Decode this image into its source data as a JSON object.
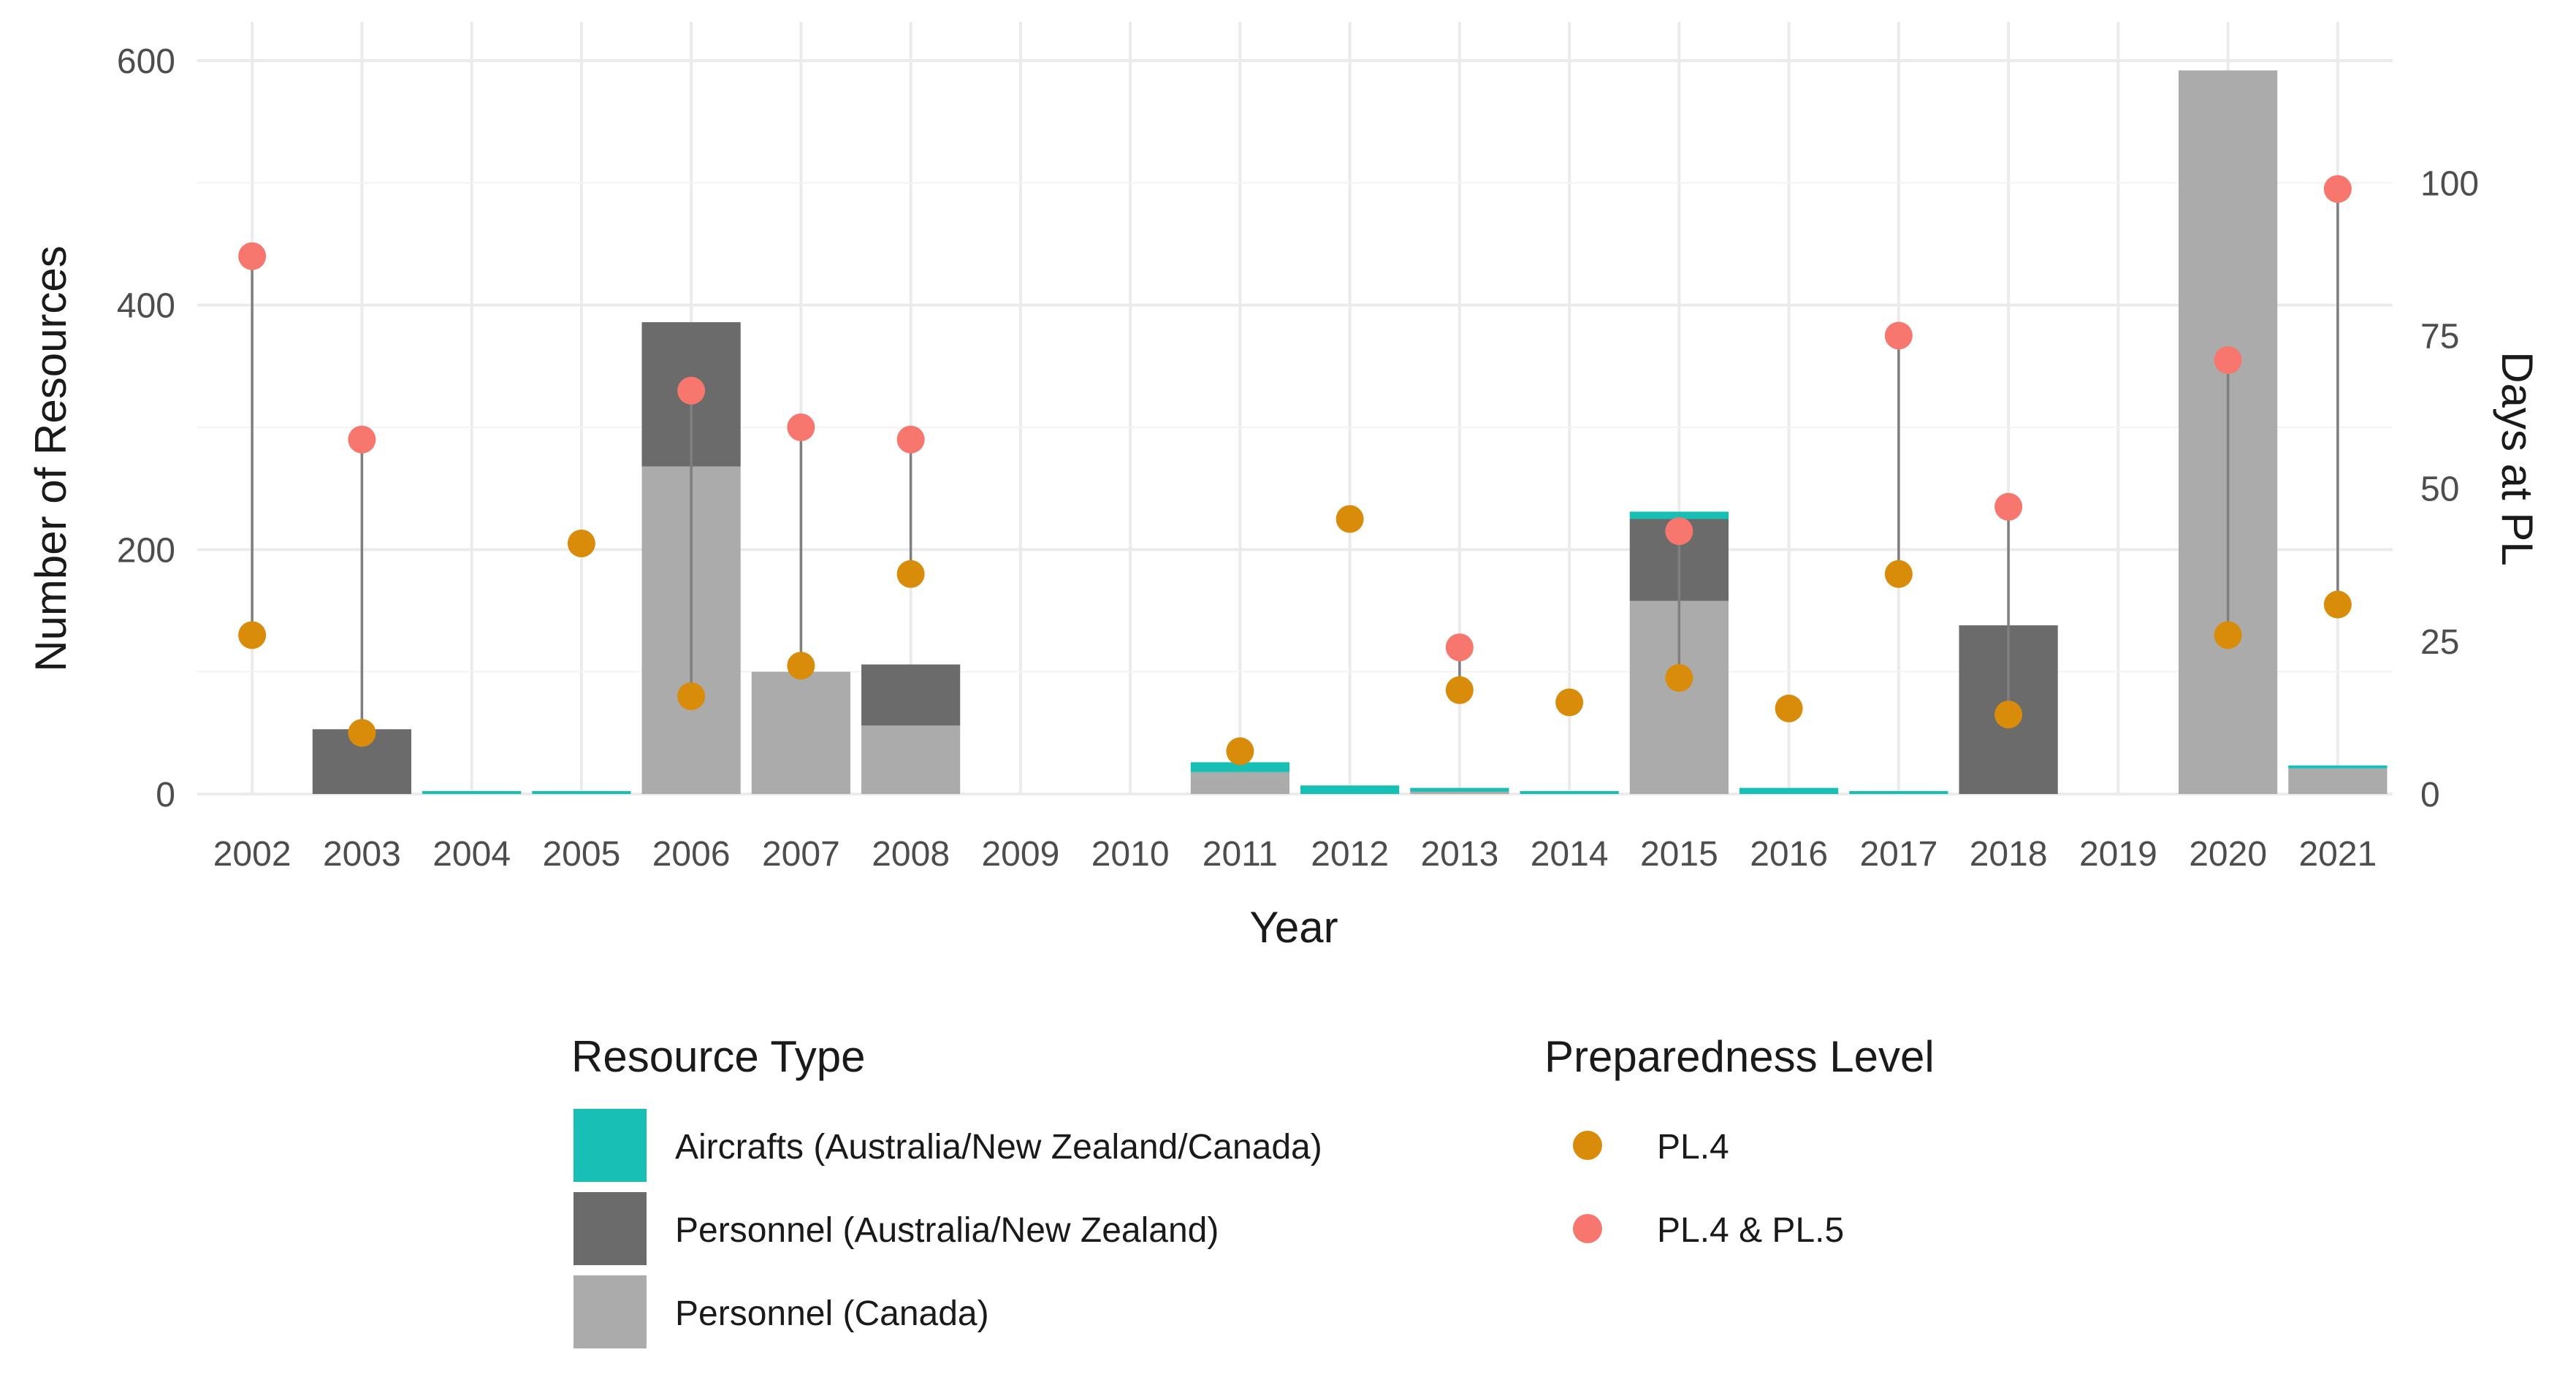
{
  "chart_data": {
    "type": "bar",
    "xlabel": "Year",
    "ylabel": "Number of Resources",
    "y2label": "Days at PL",
    "ylim": [
      0,
      600
    ],
    "y2lim": [
      0,
      120
    ],
    "yticks": [
      0,
      200,
      400,
      600
    ],
    "y2ticks": [
      0,
      25,
      50,
      75,
      100
    ],
    "grid": true,
    "categories": [
      "2002",
      "2003",
      "2004",
      "2005",
      "2006",
      "2007",
      "2008",
      "2009",
      "2010",
      "2011",
      "2012",
      "2013",
      "2014",
      "2015",
      "2016",
      "2017",
      "2018",
      "2019",
      "2020",
      "2021"
    ],
    "bar_series": [
      {
        "name": "Personnel (Canada)",
        "color": "#ababab",
        "values": [
          0,
          0,
          0,
          0,
          268,
          100,
          56,
          0,
          0,
          18,
          0,
          2,
          0,
          158,
          0,
          0,
          0,
          0,
          592,
          21
        ]
      },
      {
        "name": "Personnel (Australia/New Zealand)",
        "color": "#6b6b6b",
        "values": [
          0,
          53,
          0,
          0,
          118,
          0,
          50,
          0,
          0,
          0,
          0,
          0,
          0,
          67,
          0,
          0,
          138,
          0,
          0,
          0
        ]
      },
      {
        "name": "Aircrafts (Australia/New Zealand/Canada)",
        "color": "#17bfb5",
        "values": [
          0,
          0,
          2,
          2,
          0,
          0,
          0,
          0,
          0,
          8,
          7,
          3,
          2,
          6,
          5,
          2,
          0,
          0,
          0,
          2
        ]
      }
    ],
    "point_series": [
      {
        "name": "PL.4",
        "color": "#d98c0a",
        "axis": "right",
        "values": [
          26,
          10,
          null,
          41,
          16,
          21,
          36,
          null,
          null,
          7,
          45,
          17,
          15,
          19,
          14,
          36,
          13,
          null,
          26,
          31
        ]
      },
      {
        "name": "PL.4 & PL.5",
        "color": "#f7766d",
        "axis": "right",
        "values": [
          88,
          58,
          null,
          null,
          66,
          60,
          58,
          null,
          null,
          null,
          null,
          24,
          null,
          43,
          null,
          75,
          47,
          null,
          71,
          99
        ]
      }
    ],
    "legends": [
      {
        "title": "Resource Type",
        "placement": "bottom",
        "entries": [
          "Aircrafts (Australia/New Zealand/Canada)",
          "Personnel (Australia/New Zealand)",
          "Personnel (Canada)"
        ]
      },
      {
        "title": "Preparedness Level",
        "placement": "bottom",
        "entries": [
          "PL.4",
          "PL.4 & PL.5"
        ]
      }
    ],
    "segment_color": "#7f7f7f"
  }
}
